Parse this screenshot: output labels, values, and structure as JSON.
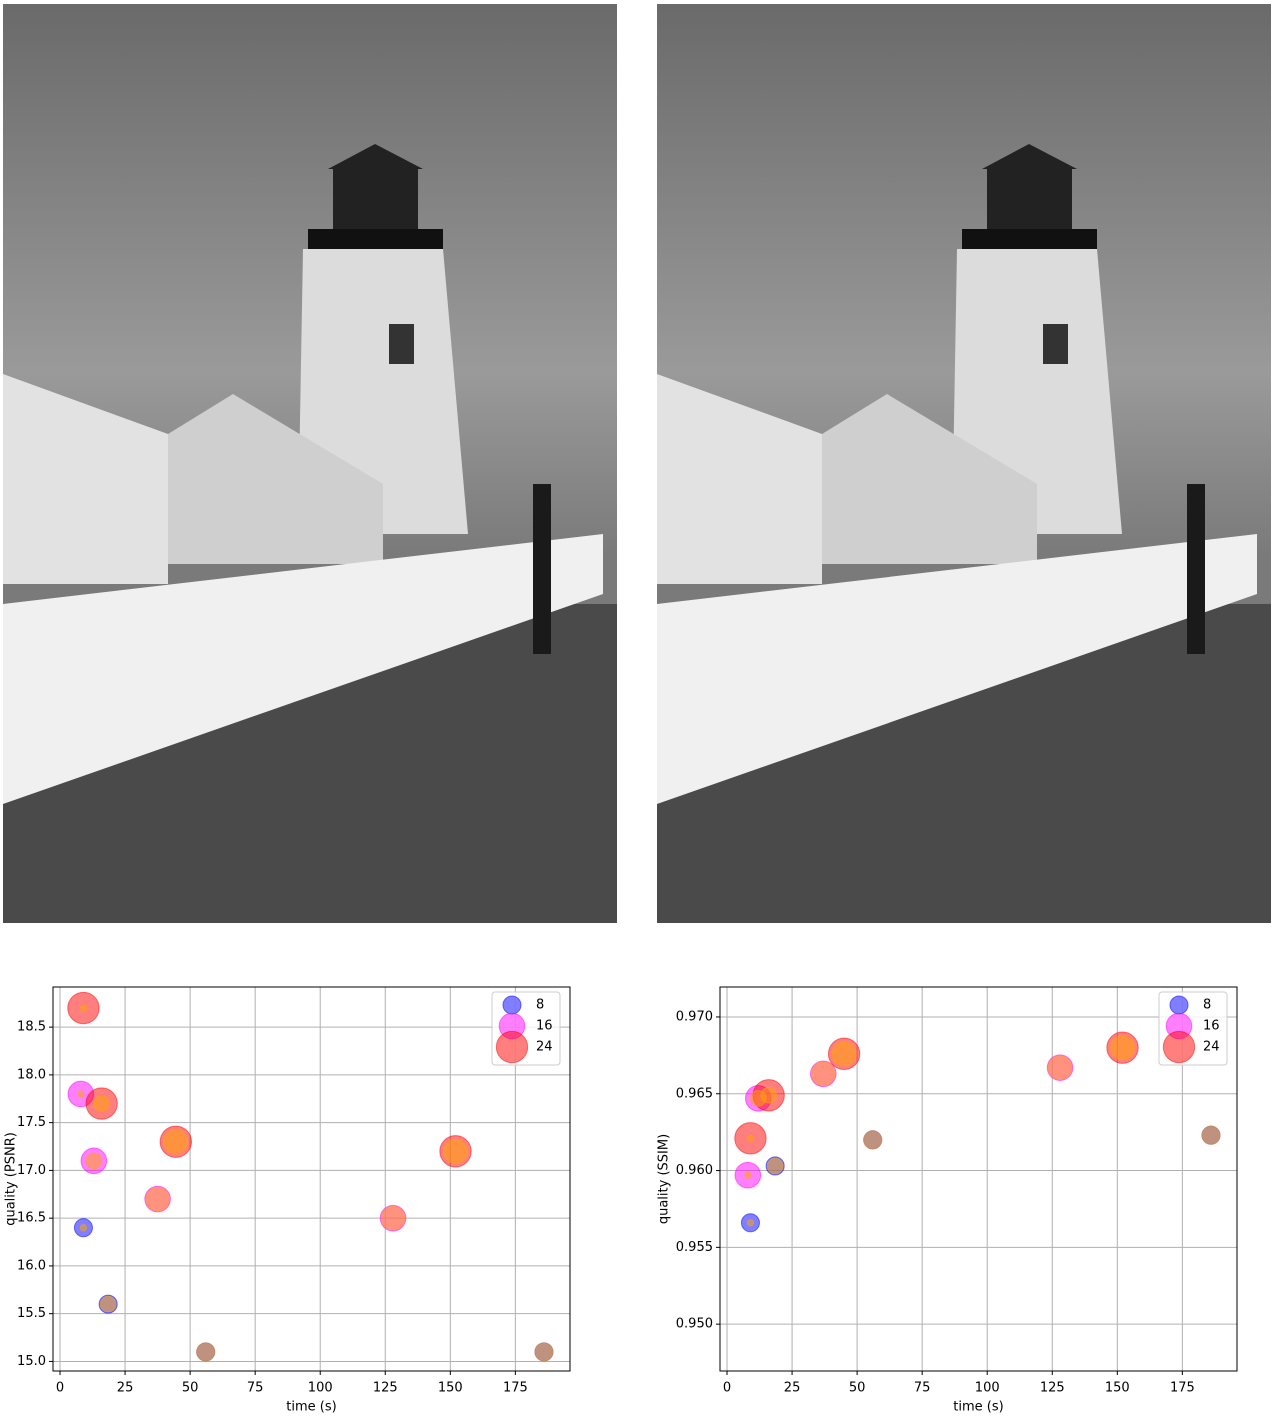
{
  "chart_data": [
    {
      "type": "scatter",
      "xlabel": "time (s)",
      "ylabel": "quality (PSNR)",
      "xlim": [
        -2.7,
        196
      ],
      "ylim": [
        14.9,
        18.92
      ],
      "xticks": [
        0,
        25,
        50,
        75,
        100,
        125,
        150,
        175
      ],
      "yticks": [
        {
          "value": 15,
          "label": "15.0"
        },
        15.5,
        {
          "value": 16,
          "label": "16.0"
        },
        16.5,
        {
          "value": 17,
          "label": "17.0"
        },
        17.5,
        {
          "value": 18,
          "label": "18.0"
        },
        18.5
      ],
      "grid": true,
      "legend": "upper right",
      "series": [
        {
          "name": "8",
          "color": "#0000ff",
          "x": [
            9,
            18.5,
            56,
            186
          ],
          "values": [
            16.4,
            15.6,
            15.1,
            15.1
          ],
          "sizes": [
            8,
            8,
            8,
            8
          ]
        },
        {
          "name": "16",
          "color": "#ff00ff",
          "x": [
            8,
            13,
            37.5,
            128
          ],
          "values": [
            17.8,
            17.1,
            16.7,
            16.5
          ],
          "sizes": [
            16,
            16,
            16,
            16
          ]
        },
        {
          "name": "24",
          "color": "#ff0000",
          "x": [
            9,
            16,
            44.5,
            152
          ],
          "values": [
            18.7,
            17.7,
            17.3,
            17.2
          ],
          "sizes": [
            24,
            24,
            24,
            24
          ]
        },
        {
          "color": "#ffa500",
          "x": [
            9,
            18.5,
            56,
            186,
            8,
            13,
            37.5,
            128,
            9,
            16,
            44.5,
            152
          ],
          "values": [
            16.4,
            15.6,
            15.1,
            15.1,
            17.8,
            17.1,
            16.7,
            16.5,
            18.7,
            17.7,
            17.3,
            17.2
          ],
          "sizes": [
            1,
            6,
            8,
            8,
            1,
            6,
            14,
            14,
            1,
            6,
            14,
            14
          ]
        }
      ]
    },
    {
      "type": "scatter",
      "xlabel": "time (s)",
      "ylabel": "quality (SSIM)",
      "xlim": [
        -2.7,
        196
      ],
      "ylim": [
        0.94695,
        0.97195
      ],
      "xticks": [
        0,
        25,
        50,
        75,
        100,
        125,
        150,
        175
      ],
      "yticks": [
        {
          "value": 0.95,
          "label": "0.950"
        },
        0.955,
        {
          "value": 0.96,
          "label": "0.960"
        },
        0.965,
        {
          "value": 0.97,
          "label": "0.970"
        }
      ],
      "grid": true,
      "legend": "upper right",
      "series": [
        {
          "name": "8",
          "color": "#0000ff",
          "x": [
            9,
            18.5,
            56,
            186
          ],
          "values": [
            0.9566,
            0.9603,
            0.962,
            0.9623
          ],
          "sizes": [
            8,
            8,
            8,
            8
          ]
        },
        {
          "name": "16",
          "color": "#ff00ff",
          "x": [
            8,
            12,
            37,
            128
          ],
          "values": [
            0.9597,
            0.9647,
            0.9663,
            0.9667
          ],
          "sizes": [
            16,
            16,
            16,
            16
          ]
        },
        {
          "name": "24",
          "color": "#ff0000",
          "x": [
            9,
            16,
            45,
            152
          ],
          "values": [
            0.9621,
            0.9649,
            0.9676,
            0.968
          ],
          "sizes": [
            24,
            24,
            24,
            24
          ]
        },
        {
          "color": "#ffa500",
          "x": [
            9,
            18.5,
            56,
            186,
            8,
            12,
            37,
            128,
            9,
            16,
            45,
            152
          ],
          "values": [
            0.9566,
            0.9603,
            0.962,
            0.9623,
            0.9597,
            0.9647,
            0.9663,
            0.9667,
            0.9621,
            0.9649,
            0.9676,
            0.968
          ],
          "sizes": [
            1,
            6,
            8,
            8,
            1,
            6,
            14,
            14,
            1,
            6,
            14,
            14
          ]
        }
      ]
    }
  ]
}
